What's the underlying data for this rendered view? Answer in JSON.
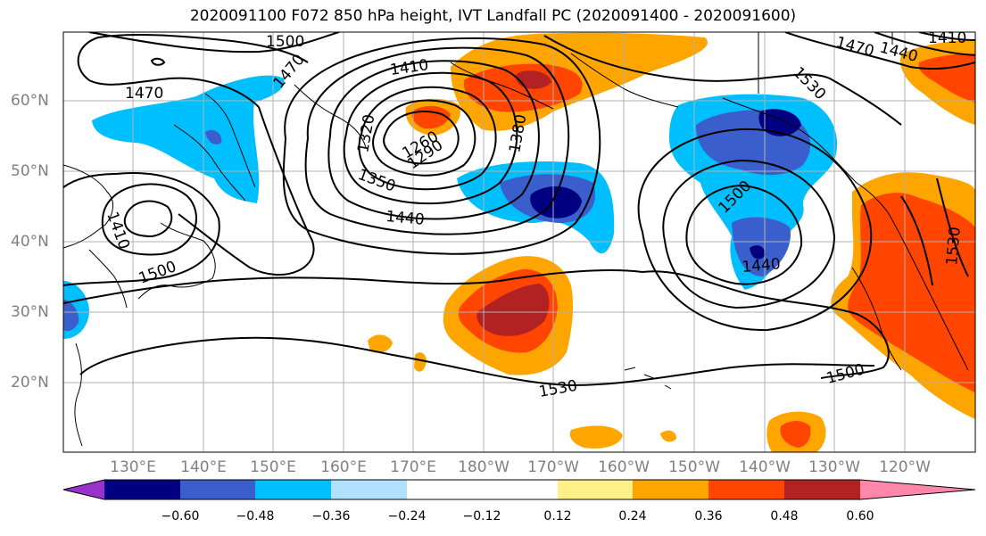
{
  "title": "2020091100 F072 850 hPa height, IVT Landfall PC (2020091400 - 2020091600)",
  "lat_labels": [
    "60°N",
    "50°N",
    "40°N",
    "30°N",
    "20°N"
  ],
  "lon_labels": [
    "130°E",
    "140°E",
    "150°E",
    "160°E",
    "170°E",
    "180°W",
    "170°W",
    "160°W",
    "150°W",
    "140°W",
    "130°W",
    "120°W"
  ],
  "contour_labels": [
    "1500",
    "1470",
    "1410",
    "1440",
    "1410",
    "1530",
    "1470",
    "1320",
    "1260",
    "1290",
    "1380",
    "1350",
    "1440",
    "1470",
    "1410",
    "1500",
    "1440",
    "1500",
    "1530",
    "1530",
    "1500"
  ],
  "colorbar": {
    "tick_labels": [
      "−0.60",
      "−0.48",
      "−0.36",
      "−0.24",
      "−0.12",
      "0.12",
      "0.24",
      "0.36",
      "0.48",
      "0.60"
    ],
    "colors": [
      "#9932cc",
      "#000080",
      "#3a5fcd",
      "#00bfff",
      "#b0e2ff",
      "#ffffff",
      "#ffffff",
      "#fff08a",
      "#ffa500",
      "#ff4500",
      "#b22222",
      "#ff88aa"
    ]
  },
  "fill_colors": {
    "neg_deep": "#000080",
    "neg_mid": "#3a5fcd",
    "neg_light": "#00bfff",
    "pos_light": "#ffa500",
    "pos_mid": "#ff4500",
    "pos_deep": "#b22222"
  }
}
